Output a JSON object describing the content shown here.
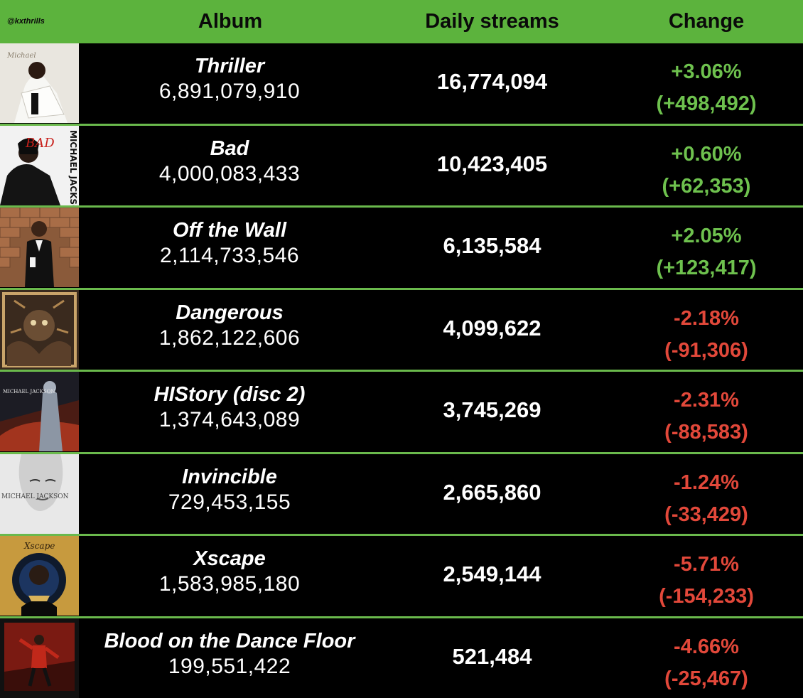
{
  "header": {
    "handle": "@kxthrills",
    "album_label": "Album",
    "streams_label": "Daily streams",
    "change_label": "Change"
  },
  "colors": {
    "header_bg": "#5cb33d",
    "positive": "#6ec14e",
    "negative": "#e2483a",
    "divider": "#6ab94c"
  },
  "rows": [
    {
      "name": "Thriller",
      "total": "6,891,079,910",
      "daily": "16,774,094",
      "pct": "+3.06%",
      "delta": "(+498,492)",
      "direction": "up",
      "cover_icon": "thriller-cover"
    },
    {
      "name": "Bad",
      "total": "4,000,083,433",
      "daily": "10,423,405",
      "pct": "+0.60%",
      "delta": "(+62,353)",
      "direction": "up",
      "cover_icon": "bad-cover"
    },
    {
      "name": "Off the Wall",
      "total": "2,114,733,546",
      "daily": "6,135,584",
      "pct": "+2.05%",
      "delta": "(+123,417)",
      "direction": "up",
      "cover_icon": "off-the-wall-cover"
    },
    {
      "name": "Dangerous",
      "total": "1,862,122,606",
      "daily": "4,099,622",
      "pct": "-2.18%",
      "delta": "(-91,306)",
      "direction": "down",
      "cover_icon": "dangerous-cover"
    },
    {
      "name": "HIStory (disc 2)",
      "total": "1,374,643,089",
      "daily": "3,745,269",
      "pct": "-2.31%",
      "delta": "(-88,583)",
      "direction": "down",
      "cover_icon": "history-cover"
    },
    {
      "name": "Invincible",
      "total": "729,453,155",
      "daily": "2,665,860",
      "pct": "-1.24%",
      "delta": "(-33,429)",
      "direction": "down",
      "cover_icon": "invincible-cover"
    },
    {
      "name": "Xscape",
      "total": "1,583,985,180",
      "daily": "2,549,144",
      "pct": "-5.71%",
      "delta": "(-154,233)",
      "direction": "down",
      "cover_icon": "xscape-cover"
    },
    {
      "name": "Blood on the Dance Floor",
      "total": "199,551,422",
      "daily": "521,484",
      "pct": "-4.66%",
      "delta": "(-25,467)",
      "direction": "down",
      "cover_icon": "blood-on-the-dance-floor-cover"
    }
  ],
  "covers": {
    "bad_text": "BAD",
    "bad_side": "MICHAEL JACKSON",
    "history_text": "MICHAEL JACKSON",
    "invincible_text": "MICHAEL JACKSON",
    "xscape_text": "Xscape"
  }
}
